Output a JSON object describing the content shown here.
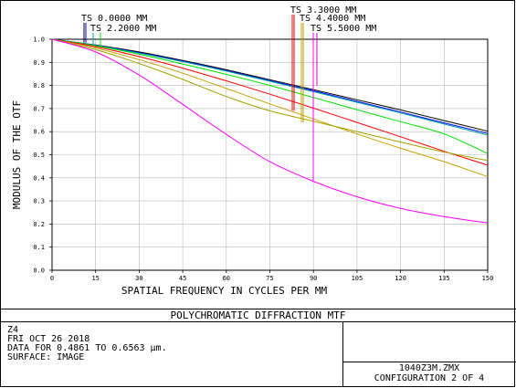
{
  "chart_data": {
    "type": "line",
    "xlabel": "SPATIAL FREQUENCY IN CYCLES PER MM",
    "ylabel": "MODULUS OF THE OTF",
    "xlim": [
      0,
      150
    ],
    "ylim": [
      0,
      1.0
    ],
    "x_ticks": [
      "0",
      "15",
      "30",
      "45",
      "60",
      "75",
      "90",
      "105",
      "120",
      "135",
      "150"
    ],
    "y_ticks": [
      "0.0",
      "0.1",
      "0.2",
      "0.3",
      "0.4",
      "0.5",
      "0.6",
      "0.7",
      "0.8",
      "0.9",
      "1.0"
    ],
    "grid": true,
    "legend": [
      "TS 0.0000 MM",
      "TS 2.2000 MM",
      "TS 3.3000 MM",
      "TS 4.4000 MM",
      "TS 5.5000 MM"
    ],
    "series": [
      {
        "color": "#000000",
        "x": [
          0,
          15,
          30,
          45,
          60,
          75,
          90,
          105,
          120,
          135,
          150
        ],
        "values": [
          1.0,
          0.975,
          0.945,
          0.908,
          0.868,
          0.825,
          0.782,
          0.738,
          0.694,
          0.648,
          0.602
        ]
      },
      {
        "color": "#0000ff",
        "x": [
          0,
          15,
          30,
          45,
          60,
          75,
          90,
          105,
          120,
          135,
          150
        ],
        "values": [
          1.0,
          0.974,
          0.942,
          0.905,
          0.864,
          0.821,
          0.777,
          0.731,
          0.685,
          0.638,
          0.592
        ]
      },
      {
        "color": "#00a0a0",
        "x": [
          0,
          15,
          30,
          45,
          60,
          75,
          90,
          105,
          120,
          135,
          150
        ],
        "values": [
          1.0,
          0.973,
          0.94,
          0.903,
          0.862,
          0.818,
          0.773,
          0.727,
          0.681,
          0.633,
          0.585
        ]
      },
      {
        "color": "#00dd00",
        "x": [
          0,
          15,
          30,
          45,
          60,
          75,
          90,
          105,
          120,
          135,
          150
        ],
        "values": [
          1.0,
          0.972,
          0.935,
          0.893,
          0.848,
          0.8,
          0.748,
          0.695,
          0.643,
          0.59,
          0.505
        ]
      },
      {
        "color": "#ff0000",
        "x": [
          0,
          15,
          30,
          45,
          60,
          75,
          90,
          105,
          120,
          135,
          150
        ],
        "values": [
          1.0,
          0.968,
          0.925,
          0.875,
          0.82,
          0.762,
          0.702,
          0.64,
          0.578,
          0.515,
          0.455
        ]
      },
      {
        "color": "#c8a000",
        "x": [
          0,
          15,
          30,
          45,
          60,
          75,
          90,
          105,
          120,
          135,
          150
        ],
        "values": [
          1.0,
          0.962,
          0.912,
          0.853,
          0.787,
          0.72,
          0.655,
          0.59,
          0.528,
          0.47,
          0.405
        ]
      },
      {
        "color": "#a0a000",
        "x": [
          0,
          15,
          30,
          45,
          60,
          75,
          90,
          105,
          120,
          135,
          150
        ],
        "values": [
          1.0,
          0.955,
          0.895,
          0.826,
          0.752,
          0.69,
          0.645,
          0.6,
          0.555,
          0.512,
          0.475
        ]
      },
      {
        "color": "#ff00ff",
        "x": [
          0,
          15,
          30,
          45,
          60,
          75,
          90,
          105,
          120,
          135,
          150
        ],
        "values": [
          1.0,
          0.945,
          0.845,
          0.718,
          0.588,
          0.47,
          0.385,
          0.318,
          0.268,
          0.232,
          0.205
        ]
      }
    ]
  },
  "legend_markers": [
    {
      "color": "#0000ff",
      "x_label_index": 0
    },
    {
      "color": "#ff0000",
      "x_label_index": 2
    }
  ],
  "footer": {
    "title": "POLYCHROMATIC DIFFRACTION MTF",
    "lines": [
      "Z4",
      "FRI OCT 26 2018",
      "DATA FOR 0.4861 TO 0.6563 µm.",
      "SURFACE: IMAGE"
    ],
    "file": "1040Z3M.ZMX",
    "config": "CONFIGURATION 2 OF 4"
  }
}
